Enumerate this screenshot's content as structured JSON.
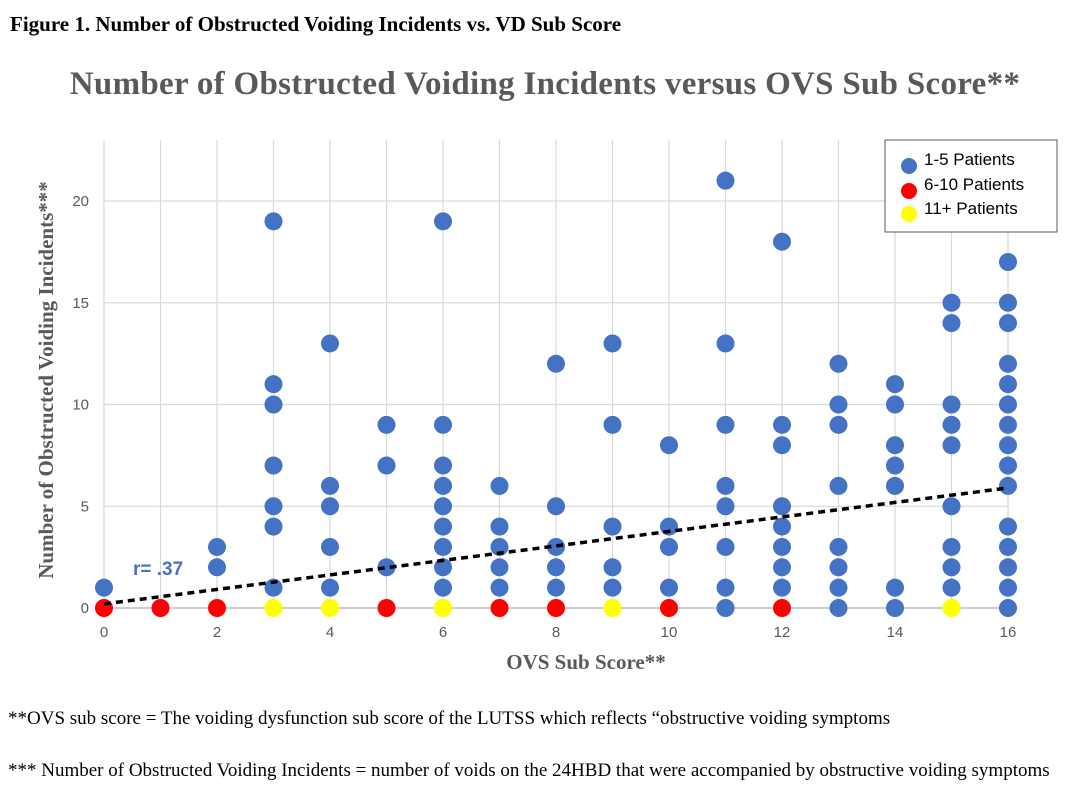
{
  "figure_caption": "Figure 1. Number of Obstructed Voiding Incidents vs. VD Sub Score",
  "footnotes": {
    "ovs": "**OVS sub score = The voiding dysfunction sub score of the LUTSS which reflects “obstructive voiding symptoms",
    "incidents": "*** Number of Obstructed Voiding Incidents = number of voids on the 24HBD that were accompanied by obstructive voiding symptoms"
  },
  "colors": {
    "series_1_5": "#4472C4",
    "series_6_10": "#FF0000",
    "series_11_plus": "#FFFF00",
    "grid": "#D9D9D9",
    "axis_text": "#595959",
    "annotation": "#4472C4",
    "trend": "#000000"
  },
  "chart_data": {
    "type": "scatter",
    "title": "Number of Obstructed Voiding Incidents versus OVS Sub Score**",
    "xlabel": "OVS Sub Score**",
    "ylabel": "Number of Obstructed Voiding Incidents***",
    "xlim": [
      0,
      16
    ],
    "ylim": [
      0,
      23
    ],
    "x_ticks": [
      0,
      2,
      4,
      6,
      8,
      10,
      12,
      14,
      16
    ],
    "y_ticks": [
      0,
      5,
      10,
      15,
      20
    ],
    "grid": true,
    "legend_position": "top-right",
    "annotation": "r= .37",
    "trendline": {
      "style": "dashed",
      "x": [
        0,
        16
      ],
      "y": [
        0.2,
        5.9
      ]
    },
    "series": [
      {
        "name": "1-5 Patients",
        "color": "#4472C4",
        "points": [
          [
            0,
            1
          ],
          [
            2,
            2
          ],
          [
            2,
            3
          ],
          [
            3,
            1
          ],
          [
            3,
            4
          ],
          [
            3,
            5
          ],
          [
            3,
            7
          ],
          [
            3,
            10
          ],
          [
            3,
            11
          ],
          [
            3,
            19
          ],
          [
            4,
            1
          ],
          [
            4,
            3
          ],
          [
            4,
            5
          ],
          [
            4,
            6
          ],
          [
            4,
            13
          ],
          [
            5,
            2
          ],
          [
            5,
            7
          ],
          [
            5,
            9
          ],
          [
            6,
            1
          ],
          [
            6,
            2
          ],
          [
            6,
            3
          ],
          [
            6,
            4
          ],
          [
            6,
            5
          ],
          [
            6,
            6
          ],
          [
            6,
            7
          ],
          [
            6,
            9
          ],
          [
            6,
            19
          ],
          [
            7,
            1
          ],
          [
            7,
            2
          ],
          [
            7,
            3
          ],
          [
            7,
            4
          ],
          [
            7,
            6
          ],
          [
            8,
            1
          ],
          [
            8,
            2
          ],
          [
            8,
            3
          ],
          [
            8,
            5
          ],
          [
            8,
            12
          ],
          [
            9,
            1
          ],
          [
            9,
            2
          ],
          [
            9,
            4
          ],
          [
            9,
            9
          ],
          [
            9,
            13
          ],
          [
            10,
            1
          ],
          [
            10,
            3
          ],
          [
            10,
            4
          ],
          [
            10,
            8
          ],
          [
            11,
            0
          ],
          [
            11,
            1
          ],
          [
            11,
            3
          ],
          [
            11,
            5
          ],
          [
            11,
            6
          ],
          [
            11,
            9
          ],
          [
            11,
            13
          ],
          [
            11,
            21
          ],
          [
            12,
            1
          ],
          [
            12,
            2
          ],
          [
            12,
            3
          ],
          [
            12,
            4
          ],
          [
            12,
            5
          ],
          [
            12,
            8
          ],
          [
            12,
            9
          ],
          [
            12,
            18
          ],
          [
            13,
            0
          ],
          [
            13,
            1
          ],
          [
            13,
            2
          ],
          [
            13,
            3
          ],
          [
            13,
            6
          ],
          [
            13,
            9
          ],
          [
            13,
            10
          ],
          [
            13,
            12
          ],
          [
            14,
            0
          ],
          [
            14,
            1
          ],
          [
            14,
            6
          ],
          [
            14,
            7
          ],
          [
            14,
            8
          ],
          [
            14,
            10
          ],
          [
            14,
            11
          ],
          [
            15,
            1
          ],
          [
            15,
            2
          ],
          [
            15,
            3
          ],
          [
            15,
            5
          ],
          [
            15,
            8
          ],
          [
            15,
            9
          ],
          [
            15,
            10
          ],
          [
            15,
            14
          ],
          [
            15,
            15
          ],
          [
            16,
            0
          ],
          [
            16,
            1
          ],
          [
            16,
            2
          ],
          [
            16,
            3
          ],
          [
            16,
            4
          ],
          [
            16,
            6
          ],
          [
            16,
            7
          ],
          [
            16,
            8
          ],
          [
            16,
            9
          ],
          [
            16,
            10
          ],
          [
            16,
            11
          ],
          [
            16,
            12
          ],
          [
            16,
            14
          ],
          [
            16,
            15
          ],
          [
            16,
            17
          ]
        ]
      },
      {
        "name": "6-10 Patients",
        "color": "#FF0000",
        "points": [
          [
            0,
            0
          ],
          [
            1,
            0
          ],
          [
            2,
            0
          ],
          [
            5,
            0
          ],
          [
            7,
            0
          ],
          [
            8,
            0
          ],
          [
            10,
            0
          ],
          [
            12,
            0
          ]
        ]
      },
      {
        "name": "11+ Patients",
        "color": "#FFFF00",
        "points": [
          [
            3,
            0
          ],
          [
            4,
            0
          ],
          [
            6,
            0
          ],
          [
            9,
            0
          ],
          [
            15,
            0
          ]
        ]
      }
    ]
  }
}
